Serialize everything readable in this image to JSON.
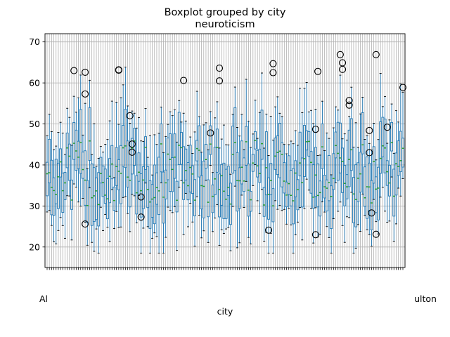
{
  "chart_data": {
    "type": "boxplot",
    "title": "Boxplot grouped by city",
    "subtitle": "neuroticism",
    "xlabel": "city",
    "ylabel": "",
    "ylim": [
      15,
      72
    ],
    "yticks": [
      20,
      30,
      40,
      50,
      60,
      70
    ],
    "grid": true,
    "category_count": 160,
    "first_category_label": "Al",
    "last_category_label": "ulton",
    "outliers": [
      {
        "category_index": 12,
        "value": 63.0
      },
      {
        "category_index": 17,
        "value": 62.6
      },
      {
        "category_index": 17,
        "value": 57.3
      },
      {
        "category_index": 17,
        "value": 25.6
      },
      {
        "category_index": 32,
        "value": 63.1
      },
      {
        "category_index": 32,
        "value": 63.2
      },
      {
        "category_index": 37,
        "value": 52.0
      },
      {
        "category_index": 38,
        "value": 45.1
      },
      {
        "category_index": 38,
        "value": 43.1
      },
      {
        "category_index": 42,
        "value": 32.2
      },
      {
        "category_index": 42,
        "value": 27.3
      },
      {
        "category_index": 61,
        "value": 60.6
      },
      {
        "category_index": 73,
        "value": 47.8
      },
      {
        "category_index": 77,
        "value": 63.6
      },
      {
        "category_index": 77,
        "value": 60.5
      },
      {
        "category_index": 99,
        "value": 24.1
      },
      {
        "category_index": 101,
        "value": 64.7
      },
      {
        "category_index": 101,
        "value": 62.5
      },
      {
        "category_index": 120,
        "value": 48.7
      },
      {
        "category_index": 120,
        "value": 23.0
      },
      {
        "category_index": 121,
        "value": 62.8
      },
      {
        "category_index": 131,
        "value": 66.9
      },
      {
        "category_index": 132,
        "value": 64.9
      },
      {
        "category_index": 132,
        "value": 63.3
      },
      {
        "category_index": 135,
        "value": 55.7
      },
      {
        "category_index": 135,
        "value": 54.6
      },
      {
        "category_index": 144,
        "value": 48.4
      },
      {
        "category_index": 144,
        "value": 43.0
      },
      {
        "category_index": 145,
        "value": 28.3
      },
      {
        "category_index": 147,
        "value": 66.9
      },
      {
        "category_index": 147,
        "value": 23.1
      },
      {
        "category_index": 152,
        "value": 49.2
      },
      {
        "category_index": 159,
        "value": 58.9
      }
    ]
  }
}
